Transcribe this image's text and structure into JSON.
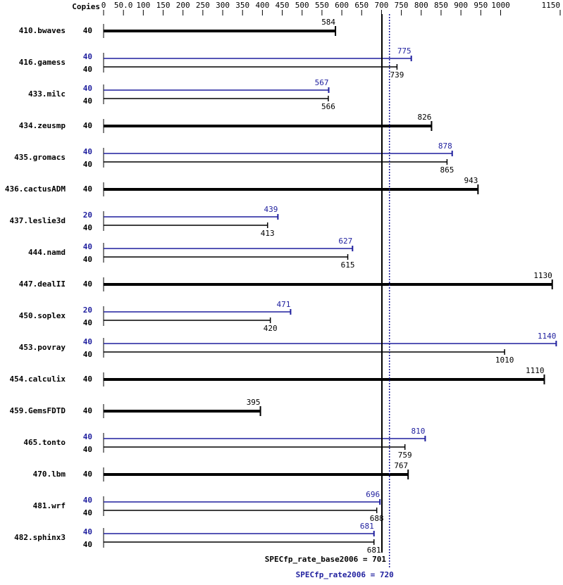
{
  "chart_data": {
    "type": "bar",
    "copies_header": "Copies",
    "categories": [
      "410.bwaves",
      "416.gamess",
      "433.milc",
      "434.zeusmp",
      "435.gromacs",
      "436.cactusADM",
      "437.leslie3d",
      "444.namd",
      "447.dealII",
      "450.soplex",
      "453.povray",
      "454.calculix",
      "459.GemsFDTD",
      "465.tonto",
      "470.lbm",
      "481.wrf",
      "482.sphinx3"
    ],
    "base": {
      "color": "#000000",
      "copies": [
        40,
        40,
        40,
        40,
        40,
        40,
        40,
        40,
        40,
        40,
        40,
        40,
        40,
        40,
        40,
        40,
        40
      ],
      "values": [
        584,
        739,
        566,
        826,
        865,
        943,
        413,
        615,
        1130,
        420,
        1010,
        1110,
        395,
        759,
        767,
        688,
        681
      ]
    },
    "peak": {
      "color": "#1f1f9e",
      "copies": [
        null,
        40,
        40,
        null,
        40,
        null,
        20,
        40,
        null,
        20,
        40,
        null,
        null,
        40,
        null,
        40,
        40
      ],
      "values": [
        null,
        775,
        567,
        null,
        878,
        null,
        439,
        627,
        null,
        471,
        1140,
        null,
        null,
        810,
        null,
        696,
        681
      ]
    },
    "xlim": [
      0,
      1150
    ],
    "xticks": [
      0,
      {
        "value": 50,
        "label": "50.0"
      },
      100,
      150,
      200,
      250,
      300,
      350,
      400,
      450,
      500,
      550,
      600,
      650,
      700,
      750,
      800,
      850,
      900,
      950,
      1000,
      1150
    ],
    "reference_lines": [
      {
        "label": "SPECfp_rate_base2006 = 701",
        "value": 701,
        "color": "#000000",
        "style": "solid"
      },
      {
        "label": "SPECfp_rate2006 = 720",
        "value": 720,
        "color": "#1f1f9e",
        "style": "dotted"
      }
    ]
  }
}
